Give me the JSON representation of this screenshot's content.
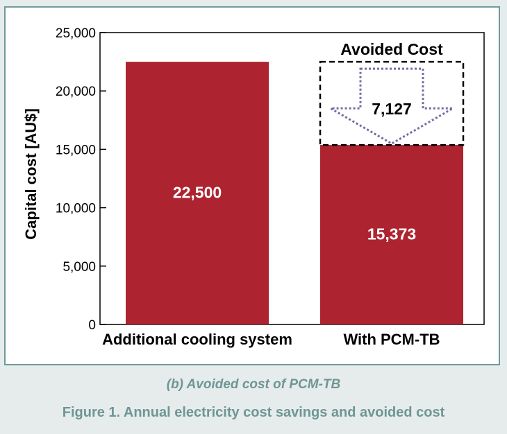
{
  "chart_data": {
    "type": "bar",
    "categories": [
      "Additional cooling system",
      "With PCM-TB"
    ],
    "values": [
      22500,
      15373
    ],
    "data_labels": [
      "22,500",
      "15,373"
    ],
    "ylabel": "Capital cost [AU$]",
    "xlabel": "",
    "ylim": [
      0,
      25000
    ],
    "yticks": [
      0,
      5000,
      10000,
      15000,
      20000,
      25000
    ],
    "ytick_labels": [
      "0",
      "5,000",
      "10,000",
      "15,000",
      "20,000",
      "25,000"
    ],
    "grid": false,
    "bar_color": "#ad2430",
    "annotation": {
      "title": "Avoided Cost",
      "value": 7127,
      "value_label": "7,127",
      "from": 15373,
      "to": 22500,
      "arrow_color": "#7b68a6"
    }
  },
  "captions": {
    "subcaption": "(b) Avoided cost of PCM-TB",
    "figure_title": "Figure 1. Annual electricity cost savings and avoided cost"
  }
}
